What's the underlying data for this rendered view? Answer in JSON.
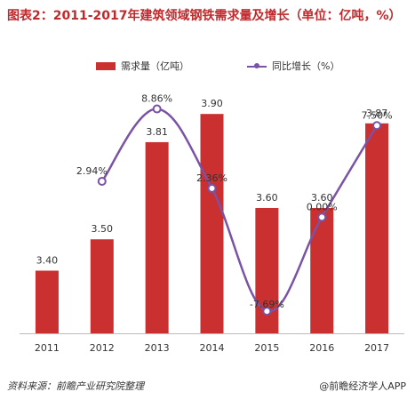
{
  "title": "图表2：2011-2017年建筑领域钢铁需求量及增长（单位：亿吨，%）",
  "legend": {
    "bar_label": "需求量（亿吨）",
    "line_label": "同比增长（%）"
  },
  "colors": {
    "title": "#c0282b",
    "bar": "#c9302f",
    "line": "#7a52a6",
    "marker_fill": "#ffffff",
    "axis": "#bbbbbb",
    "text": "#333333"
  },
  "chart_data": {
    "type": "bar",
    "categories": [
      "2011",
      "2012",
      "2013",
      "2014",
      "2015",
      "2016",
      "2017"
    ],
    "series": [
      {
        "name": "需求量（亿吨）",
        "type": "bar",
        "values": [
          3.4,
          3.5,
          3.81,
          3.9,
          3.6,
          3.6,
          3.87
        ],
        "labels": [
          "3.40",
          "3.50",
          "3.81",
          "3.90",
          "3.60",
          "3.60",
          "3.87"
        ]
      },
      {
        "name": "同比增长（%）",
        "type": "line",
        "values": [
          null,
          2.94,
          8.86,
          2.36,
          -7.69,
          0.0,
          7.5
        ],
        "labels": [
          "",
          "2.94%",
          "8.86%",
          "2.36%",
          "-7.69%",
          "0.00%",
          "7.50%"
        ]
      }
    ],
    "ylim_bar": [
      3.2,
      3.98
    ],
    "ylim_line": [
      -9.5,
      10.5
    ],
    "axis_visible": false,
    "grid": false,
    "legend_position": "top-center"
  },
  "footer": {
    "source": "资料来源：前瞻产业研究院整理",
    "brand": "@前瞻经济学人APP"
  }
}
